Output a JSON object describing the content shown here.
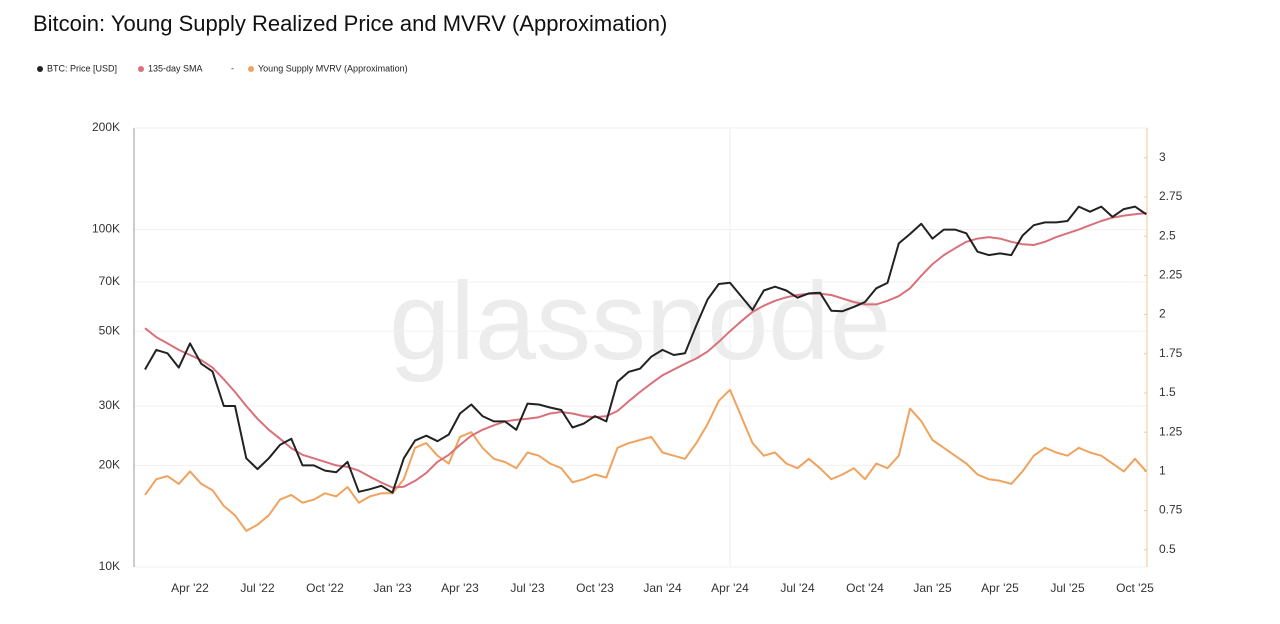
{
  "chart_data": {
    "type": "line",
    "title": "Bitcoin: Young Supply Realized Price and MVRV (Approximation)",
    "legend_separator": "-",
    "watermark": "glassnode",
    "log_scale": true,
    "grid": true,
    "categories": [
      null,
      null,
      null,
      null,
      "Apr '22",
      null,
      null,
      null,
      null,
      null,
      "Jul '22",
      null,
      null,
      null,
      null,
      null,
      "Oct '22",
      null,
      null,
      null,
      null,
      null,
      "Jan '23",
      null,
      null,
      null,
      null,
      null,
      "Apr '23",
      null,
      null,
      null,
      null,
      null,
      "Jul '23",
      null,
      null,
      null,
      null,
      null,
      "Oct '23",
      null,
      null,
      null,
      null,
      null,
      "Jan '24",
      null,
      null,
      null,
      null,
      null,
      "Apr '24",
      null,
      null,
      null,
      null,
      null,
      "Jul '24",
      null,
      null,
      null,
      null,
      null,
      "Oct '24",
      null,
      null,
      null,
      null,
      null,
      "Jan '25",
      null,
      null,
      null,
      null,
      null,
      "Apr '25",
      null,
      null,
      null,
      null,
      null,
      "Jul '25",
      null,
      null,
      null,
      null,
      null,
      "Oct '25",
      null
    ],
    "ylim": [
      10000,
      200000
    ],
    "yticks": [
      {
        "value": 10000,
        "label": "10K"
      },
      {
        "value": 20000,
        "label": "20K"
      },
      {
        "value": 30000,
        "label": "30K"
      },
      {
        "value": 50000,
        "label": "50K"
      },
      {
        "value": 70000,
        "label": "70K"
      },
      {
        "value": 100000,
        "label": "100K"
      },
      {
        "value": 200000,
        "label": "200K"
      }
    ],
    "y2lim": [
      0.39,
      3.19
    ],
    "y2ticks": [
      0.5,
      0.75,
      1,
      1.25,
      1.5,
      1.75,
      2,
      2.25,
      2.5,
      2.75,
      3
    ],
    "series": [
      {
        "name": "BTC: Price [USD]",
        "color": "#222222",
        "values": [
          38500,
          44000,
          43000,
          39000,
          46000,
          40000,
          38000,
          30000,
          30000,
          21000,
          19500,
          21000,
          23000,
          24000,
          20000,
          20000,
          19300,
          19100,
          20500,
          16700,
          17000,
          17400,
          16600,
          21000,
          23700,
          24500,
          23600,
          24700,
          28500,
          30300,
          28000,
          27000,
          27000,
          25500,
          30500,
          30300,
          29700,
          29200,
          25900,
          26600,
          28000,
          27000,
          35400,
          37900,
          38700,
          42000,
          44000,
          42500,
          43000,
          52000,
          62000,
          69000,
          69600,
          63400,
          57800,
          66000,
          67700,
          66000,
          62800,
          64700,
          65000,
          57500,
          57300,
          59000,
          61000,
          67000,
          69500,
          91000,
          97000,
          104000,
          94000,
          100000,
          100000,
          97500,
          86000,
          84000,
          85000,
          84000,
          96000,
          103000,
          105000,
          105000,
          106000,
          117000,
          113000,
          117000,
          109000,
          115000,
          117000,
          111000
        ]
      },
      {
        "name": "135-day SMA",
        "color": "#d9707a",
        "values": [
          51000,
          48000,
          46000,
          44000,
          42500,
          41000,
          39000,
          36000,
          33000,
          30000,
          27500,
          25500,
          24000,
          22500,
          21500,
          21000,
          20500,
          20000,
          19800,
          19300,
          18500,
          17800,
          17200,
          17300,
          18000,
          19000,
          20500,
          21500,
          23000,
          24500,
          25500,
          26300,
          27000,
          27300,
          27500,
          27800,
          28500,
          28800,
          28500,
          28000,
          27800,
          28000,
          29000,
          31000,
          33000,
          35000,
          37000,
          38500,
          40000,
          41500,
          43500,
          46500,
          50000,
          53500,
          57000,
          59500,
          61500,
          63000,
          64000,
          64500,
          64500,
          64000,
          62500,
          61000,
          60000,
          60000,
          61500,
          63500,
          67000,
          73000,
          79000,
          84000,
          88000,
          92000,
          94000,
          95000,
          94000,
          92000,
          90500,
          90000,
          92000,
          95000,
          97500,
          100000,
          103000,
          106000,
          108500,
          110000,
          111000,
          112000
        ]
      },
      {
        "name": "Young Supply MVRV (Approximation)",
        "color": "#f0a35e",
        "axis": "y2",
        "values": [
          0.85,
          0.95,
          0.97,
          0.92,
          1.0,
          0.92,
          0.88,
          0.78,
          0.72,
          0.62,
          0.66,
          0.72,
          0.82,
          0.85,
          0.8,
          0.82,
          0.86,
          0.84,
          0.9,
          0.8,
          0.84,
          0.86,
          0.86,
          0.95,
          1.15,
          1.18,
          1.1,
          1.05,
          1.22,
          1.25,
          1.15,
          1.08,
          1.06,
          1.02,
          1.12,
          1.1,
          1.05,
          1.02,
          0.93,
          0.95,
          0.98,
          0.96,
          1.15,
          1.18,
          1.2,
          1.22,
          1.12,
          1.1,
          1.08,
          1.18,
          1.3,
          1.45,
          1.52,
          1.35,
          1.18,
          1.1,
          1.12,
          1.05,
          1.02,
          1.08,
          1.02,
          0.95,
          0.98,
          1.02,
          0.95,
          1.05,
          1.02,
          1.1,
          1.4,
          1.32,
          1.2,
          1.15,
          1.1,
          1.05,
          0.98,
          0.95,
          0.94,
          0.92,
          1.0,
          1.1,
          1.15,
          1.12,
          1.1,
          1.15,
          1.12,
          1.1,
          1.05,
          1.0,
          1.08,
          1.0
        ]
      }
    ]
  }
}
